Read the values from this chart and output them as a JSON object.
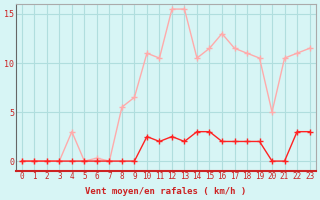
{
  "hours": [
    0,
    1,
    2,
    3,
    4,
    5,
    6,
    7,
    8,
    9,
    10,
    11,
    12,
    13,
    14,
    15,
    16,
    17,
    18,
    19,
    20,
    21,
    22,
    23
  ],
  "wind_avg": [
    0,
    0,
    0,
    0,
    0,
    0,
    0,
    0,
    0,
    0,
    2.5,
    2,
    2.5,
    2,
    3,
    3,
    2,
    2,
    2,
    2,
    0,
    0,
    3,
    3
  ],
  "wind_gust": [
    0,
    0,
    0,
    0,
    3,
    0,
    0.3,
    0,
    5.5,
    6.5,
    11,
    10.5,
    15.5,
    15.5,
    10.5,
    11.5,
    13,
    11.5,
    11,
    10.5,
    5,
    10.5,
    11,
    11.5
  ],
  "xlabel": "Vent moyen/en rafales ( km/h )",
  "ylabel": "",
  "ylim": [
    -1,
    16
  ],
  "xlim": [
    -0.5,
    23.5
  ],
  "bg_color": "#d7f5f5",
  "grid_color": "#b0dede",
  "line_color_avg": "#ff2222",
  "line_color_gust": "#ffaaaa",
  "marker_color_avg": "#ff2222",
  "marker_color_gust": "#ffaaaa"
}
